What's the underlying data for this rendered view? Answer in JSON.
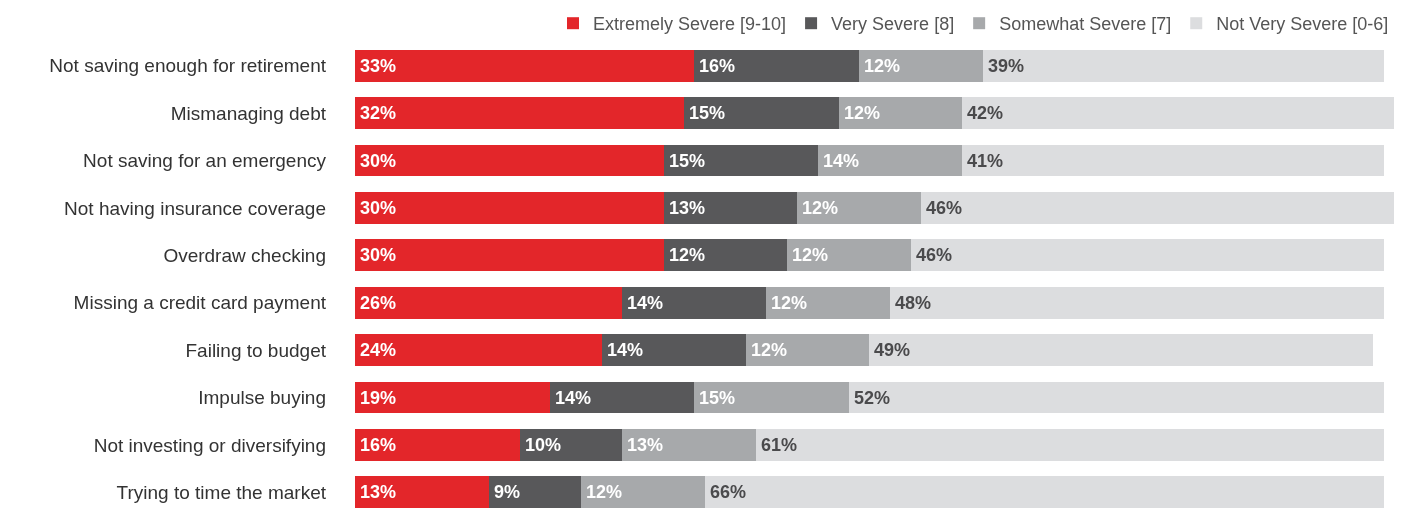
{
  "chart_data": {
    "type": "bar",
    "orientation": "horizontal",
    "stacked": true,
    "legend": "top",
    "tick_labels": "y",
    "xlim": [
      0,
      101
    ],
    "categories": [
      "Not saving enough for retirement",
      "Mismanaging debt",
      "Not saving for an emergency",
      "Not having insurance coverage",
      "Overdraw checking",
      "Missing a credit card payment",
      "Failing to budget",
      "Impulse buying",
      "Not investing or diversifying",
      "Trying to time the market"
    ],
    "series": [
      {
        "name": "Extremely Severe [9-10]",
        "color": "#e3262a",
        "values": [
          33,
          32,
          30,
          30,
          30,
          26,
          24,
          19,
          16,
          13
        ],
        "value_labels": [
          "33%",
          "32%",
          "30%",
          "30%",
          "30%",
          "26%",
          "24%",
          "19%",
          "16%",
          "13%"
        ]
      },
      {
        "name": "Very Severe [8]",
        "color": "#58585a",
        "values": [
          16,
          15,
          15,
          13,
          12,
          14,
          14,
          14,
          10,
          9
        ],
        "value_labels": [
          "16%",
          "15%",
          "15%",
          "13%",
          "12%",
          "14%",
          "14%",
          "14%",
          "10%",
          "9%"
        ]
      },
      {
        "name": "Somewhat Severe [7]",
        "color": "#a7a9ab",
        "values": [
          12,
          12,
          14,
          12,
          12,
          12,
          12,
          15,
          13,
          12
        ],
        "value_labels": [
          "12%",
          "12%",
          "14%",
          "12%",
          "12%",
          "12%",
          "12%",
          "15%",
          "13%",
          "12%"
        ]
      },
      {
        "name": "Not Very Severe [0-6]",
        "color": "#dcdddf",
        "values": [
          39,
          42,
          41,
          46,
          46,
          48,
          49,
          52,
          61,
          66
        ],
        "value_labels": [
          "39%",
          "42%",
          "41%",
          "46%",
          "46%",
          "48%",
          "49%",
          "52%",
          "61%",
          "66%"
        ]
      }
    ]
  }
}
